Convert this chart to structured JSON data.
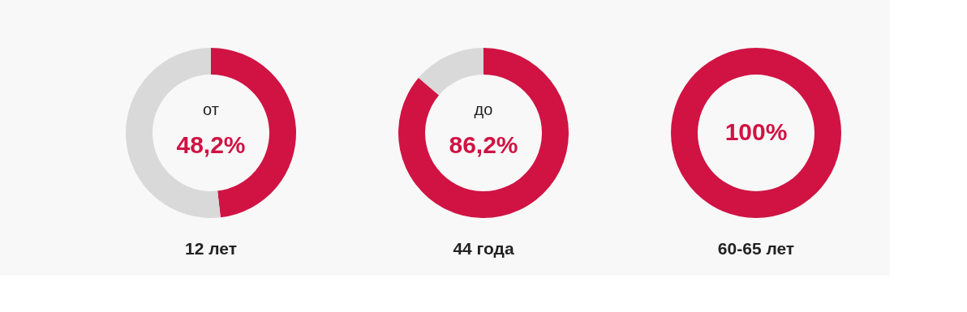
{
  "chart_data": [
    {
      "type": "donut",
      "title": "12 лет",
      "annotations": [
        "от"
      ],
      "categories": [
        null,
        null
      ],
      "values": [
        48.2,
        51.8
      ],
      "colors": [
        "#d01343",
        "#d9d9d9"
      ],
      "value_labels": [
        "48,2%",
        null
      ]
    },
    {
      "type": "donut",
      "title": "44 года",
      "annotations": [
        "до"
      ],
      "categories": [
        null,
        null
      ],
      "values": [
        86.2,
        13.8
      ],
      "colors": [
        "#d01343",
        "#d9d9d9"
      ],
      "value_labels": [
        "86,2%",
        null
      ]
    },
    {
      "type": "donut",
      "title": "60-65 лет",
      "categories": [
        null
      ],
      "values": [
        100
      ],
      "colors": [
        "#d01343"
      ],
      "value_labels": [
        "100%"
      ]
    }
  ]
}
